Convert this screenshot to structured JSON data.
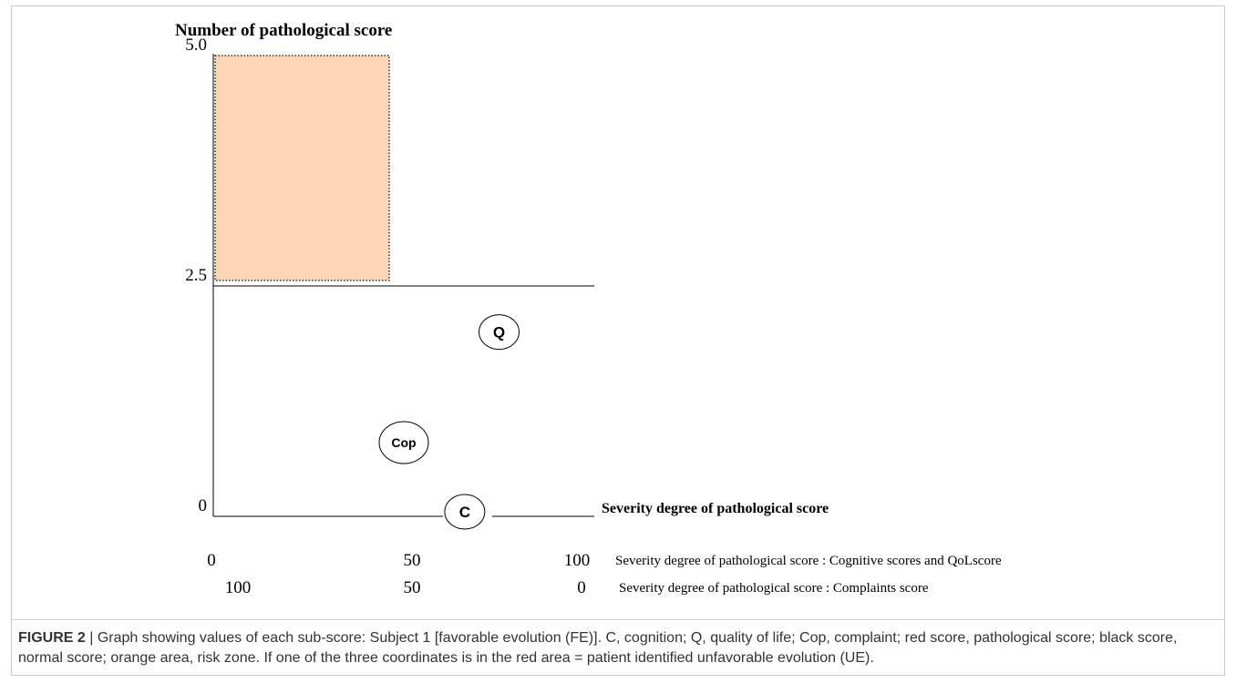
{
  "chart_data": {
    "type": "scatter",
    "title": "Number of pathological score",
    "ylabel": "Number of pathological score",
    "xlabel": "Severity degree of pathological score",
    "ylim": [
      0,
      5
    ],
    "xlim": [
      0,
      100
    ],
    "y_ticks": [
      "0",
      "2.5",
      "5.0"
    ],
    "x_axis_rows": [
      {
        "ticks": [
          "0",
          "50",
          "100"
        ],
        "label": "Severity degree of pathological score : Cognitive scores and QoLscore"
      },
      {
        "ticks": [
          "100",
          "50",
          "0"
        ],
        "label": "Severity degree of pathological score : Complaints score"
      }
    ],
    "risk_zone": {
      "x_range": [
        0,
        50
      ],
      "y_range": [
        2.5,
        5
      ],
      "color": "#fcd5b5"
    },
    "threshold_y": 2.5,
    "points": [
      {
        "label": "Q",
        "x": 75,
        "y": 2.0
      },
      {
        "label": "Cop",
        "x": 50,
        "y": 0.8
      },
      {
        "label": "C",
        "x": 66,
        "y": 0.05
      }
    ]
  },
  "caption": {
    "label": "FIGURE 2",
    "text": " | Graph showing values of each sub-score: Subject 1 [favorable evolution (FE)]. C, cognition; Q, quality of life; Cop, complaint; red score, pathological score; black score, normal score; orange area, risk zone. If one of the three coordinates is in the red area = patient identified unfavorable evolution (UE)."
  }
}
